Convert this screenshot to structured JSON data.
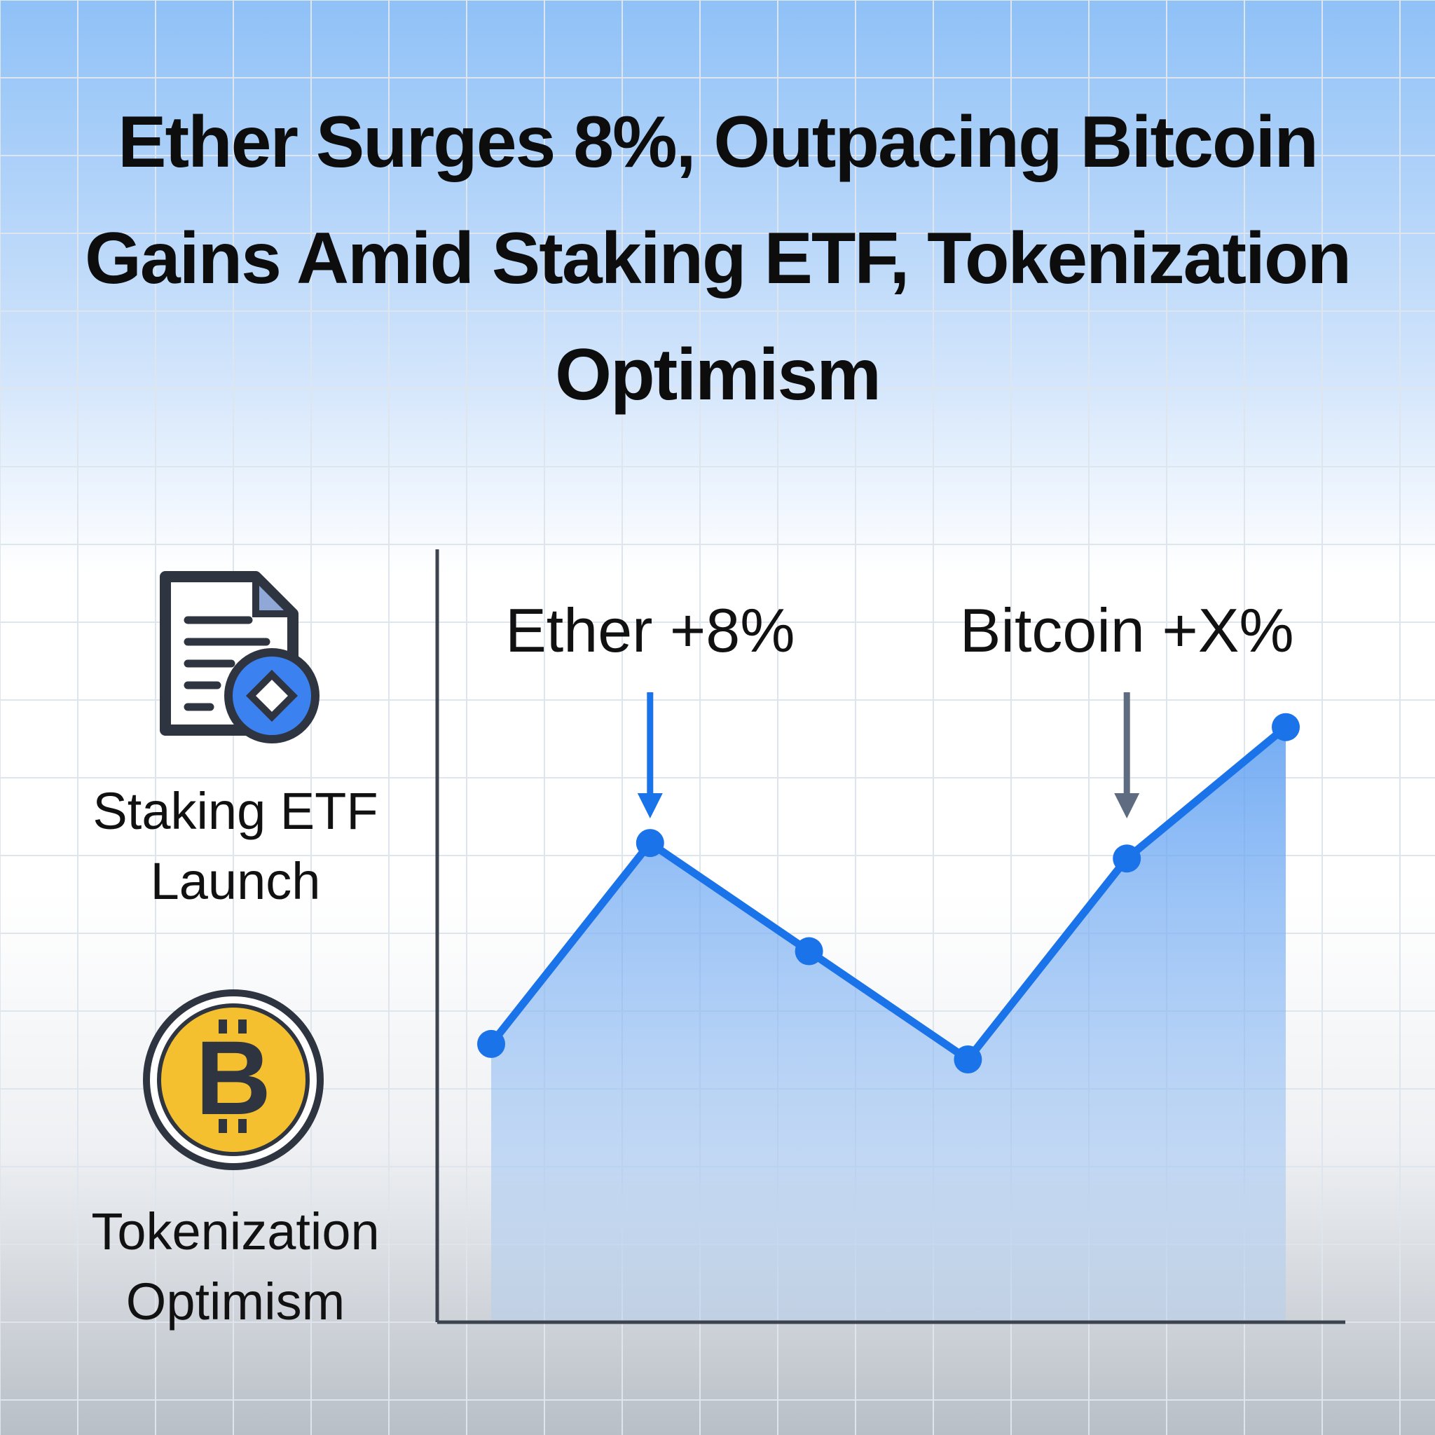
{
  "chart_data": {
    "type": "area",
    "title": "Ether Surges 8%, Outpacing Bitcoin Gains Amid Staking ETF, Tokenization Optimism",
    "categories": [
      null,
      null,
      null,
      null,
      null,
      null
    ],
    "series": [
      {
        "color": "#1a73e8",
        "values": [
          36,
          62,
          48,
          34,
          60,
          77
        ]
      }
    ],
    "ylim": [
      0,
      100
    ],
    "annotations": [
      {
        "text": "Ether +8%",
        "color": "#1a73e8"
      },
      {
        "text": "Bitcoin +X%",
        "color": "#5f6b80"
      }
    ]
  },
  "sidebar": [
    {
      "label": "Staking ETF Launch"
    },
    {
      "label": "Tokenization Optimism"
    }
  ]
}
